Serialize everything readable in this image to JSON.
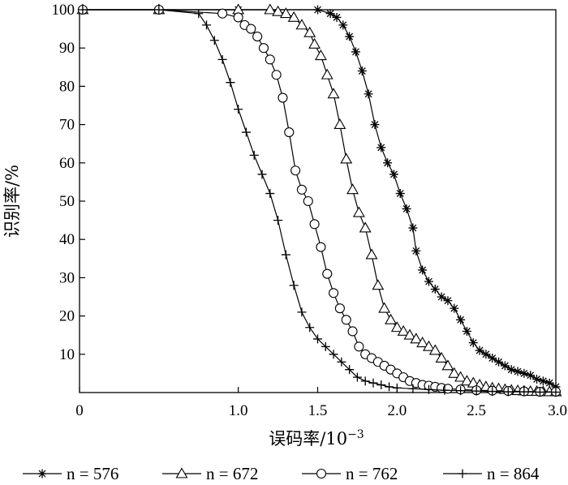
{
  "chart_data": {
    "type": "line",
    "title": "",
    "xlabel": "误码率/10",
    "xlabel_exponent": "−3",
    "ylabel": "识别率/%",
    "xlim": [
      0,
      3.0
    ],
    "ylim": [
      0,
      100
    ],
    "x_ticks": [
      {
        "value": 0,
        "label": "0"
      },
      {
        "value": 1.0,
        "label": "1.0"
      },
      {
        "value": 1.5,
        "label": "1.5"
      },
      {
        "value": 2.0,
        "label": "2.0"
      },
      {
        "value": 2.5,
        "label": "2.5"
      },
      {
        "value": 3.0,
        "label": "3.0"
      }
    ],
    "y_ticks": [
      {
        "value": 10,
        "label": "10"
      },
      {
        "value": 20,
        "label": "20"
      },
      {
        "value": 30,
        "label": "30"
      },
      {
        "value": 40,
        "label": "40"
      },
      {
        "value": 50,
        "label": "50"
      },
      {
        "value": 60,
        "label": "60"
      },
      {
        "value": 70,
        "label": "70"
      },
      {
        "value": 80,
        "label": "80"
      },
      {
        "value": 90,
        "label": "90"
      },
      {
        "value": 100,
        "label": "100"
      }
    ],
    "grid": false,
    "legend_position": "bottom",
    "series": [
      {
        "name": "n = 576",
        "marker": "asterisk",
        "color": "#000000",
        "x": [
          0.02,
          0.5,
          1.0,
          1.5,
          1.58,
          1.62,
          1.66,
          1.7,
          1.74,
          1.78,
          1.82,
          1.86,
          1.9,
          1.94,
          1.98,
          2.02,
          2.06,
          2.1,
          2.12,
          2.16,
          2.2,
          2.24,
          2.28,
          2.32,
          2.36,
          2.4,
          2.44,
          2.48,
          2.52,
          2.56,
          2.6,
          2.64,
          2.68,
          2.72,
          2.76,
          2.8,
          2.84,
          2.88,
          2.92,
          2.96,
          3.0
        ],
        "y": [
          100,
          100,
          100,
          100,
          99,
          98,
          96,
          93,
          89,
          84,
          78,
          70,
          64,
          60,
          57,
          52,
          48,
          43,
          37,
          32,
          29,
          27,
          25,
          24,
          22,
          19,
          16,
          13,
          11,
          10,
          9,
          8,
          7,
          6,
          5.5,
          5,
          4.5,
          3.5,
          3,
          2.5,
          1.5
        ]
      },
      {
        "name": "n = 672",
        "marker": "triangle",
        "color": "#000000",
        "x": [
          0.02,
          0.5,
          1.0,
          1.2,
          1.25,
          1.3,
          1.35,
          1.4,
          1.45,
          1.48,
          1.52,
          1.56,
          1.6,
          1.64,
          1.68,
          1.72,
          1.76,
          1.8,
          1.84,
          1.88,
          1.92,
          1.96,
          2.0,
          2.04,
          2.08,
          2.12,
          2.16,
          2.2,
          2.24,
          2.28,
          2.32,
          2.36,
          2.4,
          2.44,
          2.48,
          2.52,
          2.56,
          2.6,
          2.64,
          2.68,
          2.72,
          2.76,
          2.8,
          2.84,
          2.88,
          2.92,
          2.96,
          3.0
        ],
        "y": [
          100,
          100,
          100,
          100,
          99.5,
          99,
          98,
          96,
          94,
          91,
          88,
          83,
          78,
          70,
          61,
          53,
          47,
          43,
          36,
          28,
          22,
          19,
          17,
          16,
          15,
          14,
          13,
          12,
          11,
          9,
          7,
          5,
          4,
          3,
          2.5,
          2,
          1.5,
          1.2,
          1,
          0.8,
          0.6,
          0.5,
          0.4,
          0.3,
          0.3,
          0.2,
          0.2,
          0.2
        ]
      },
      {
        "name": "n = 762",
        "marker": "circle",
        "color": "#000000",
        "x": [
          0.02,
          0.5,
          0.9,
          1.0,
          1.04,
          1.08,
          1.12,
          1.16,
          1.2,
          1.24,
          1.28,
          1.32,
          1.36,
          1.4,
          1.44,
          1.48,
          1.52,
          1.56,
          1.6,
          1.64,
          1.68,
          1.72,
          1.76,
          1.8,
          1.84,
          1.88,
          1.92,
          1.96,
          2.0,
          2.04,
          2.08,
          2.12,
          2.16,
          2.2,
          2.24,
          2.28,
          2.32,
          2.4,
          2.5,
          2.6,
          2.7,
          2.8,
          2.9,
          3.0
        ],
        "y": [
          100,
          100,
          99,
          98,
          96,
          95,
          93,
          90,
          87,
          83,
          77,
          68,
          58,
          53,
          50,
          44,
          38,
          31,
          26,
          22,
          19,
          16,
          12,
          10,
          9,
          8,
          7,
          6,
          5,
          4,
          3,
          2.5,
          2,
          1.8,
          1.5,
          1.2,
          1,
          0.8,
          0.6,
          0.5,
          0.4,
          0.3,
          0.2,
          0.2
        ]
      },
      {
        "name": "n = 864",
        "marker": "plus",
        "color": "#000000",
        "x": [
          0.02,
          0.5,
          0.75,
          0.8,
          0.85,
          0.9,
          0.95,
          1.0,
          1.05,
          1.1,
          1.15,
          1.2,
          1.25,
          1.3,
          1.35,
          1.4,
          1.45,
          1.5,
          1.55,
          1.6,
          1.65,
          1.7,
          1.75,
          1.8,
          1.85,
          1.9,
          1.95,
          2.0,
          2.1,
          2.2,
          2.3,
          2.4,
          2.5,
          2.6,
          2.7,
          2.8,
          2.9,
          3.0
        ],
        "y": [
          100,
          100,
          99,
          96,
          92,
          87,
          81,
          74,
          68,
          62,
          57,
          52,
          45,
          36,
          28,
          21,
          17,
          14,
          12,
          10,
          8,
          6,
          4,
          3,
          2.5,
          2,
          1.5,
          1.2,
          1,
          0.8,
          0.6,
          0.5,
          0.4,
          0.3,
          0.2,
          0.2,
          0.1,
          0.1
        ]
      }
    ]
  }
}
